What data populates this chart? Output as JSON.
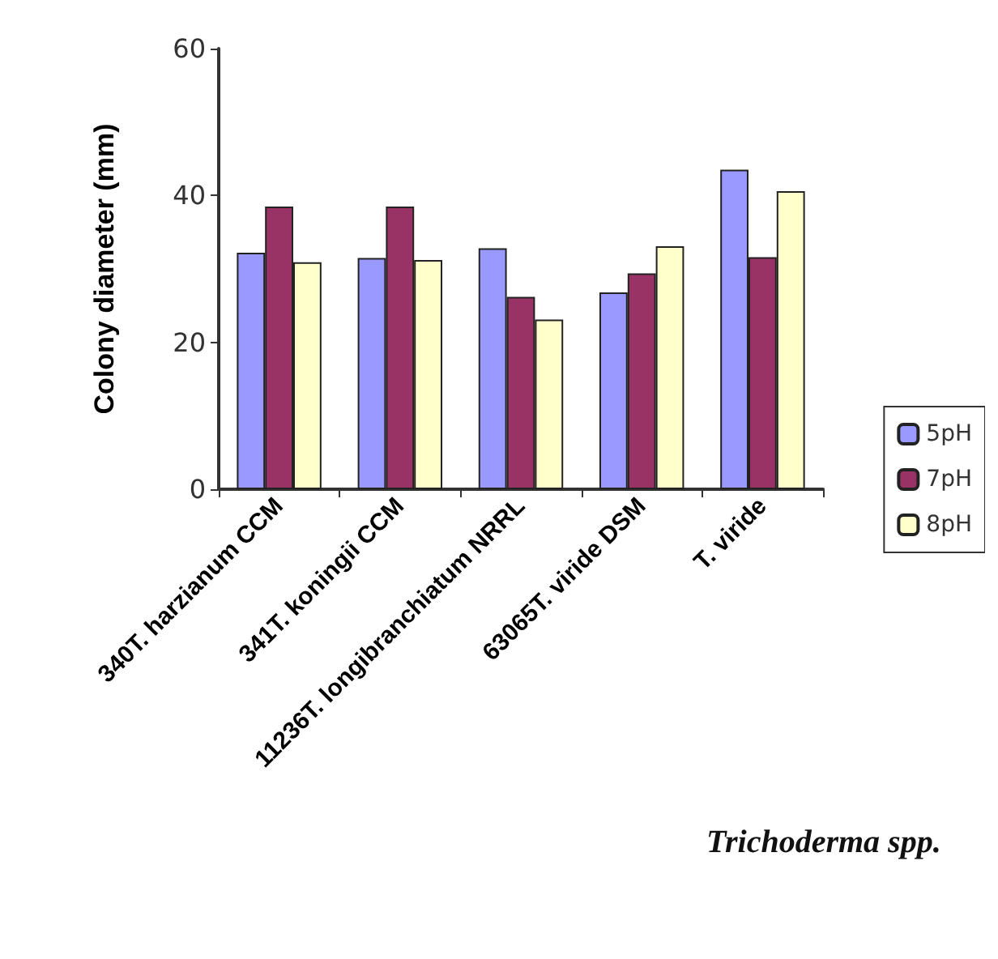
{
  "chart_data": {
    "type": "bar",
    "xlabel": "Trichoderma spp.",
    "ylabel": "Colony diameter (mm)",
    "categories": [
      "340T. harzianum CCM",
      "341T. koningii CCM",
      "11236T. longibranchiatum NRRL",
      "63065T. viride DSM",
      "T. viride"
    ],
    "series": [
      {
        "name": "5pH",
        "color": "#9999ff",
        "values": [
          32.2,
          31.5,
          32.8,
          26.8,
          43.5
        ]
      },
      {
        "name": "7pH",
        "color": "#993366",
        "values": [
          38.5,
          38.5,
          26.2,
          29.4,
          31.6
        ]
      },
      {
        "name": "8pH",
        "color": "#ffffcc",
        "values": [
          30.9,
          31.2,
          23.1,
          33.1,
          40.6
        ]
      }
    ],
    "ylim": [
      0,
      60
    ],
    "yticks": [
      0,
      20,
      40,
      60
    ],
    "grid": false,
    "legend": "right"
  }
}
